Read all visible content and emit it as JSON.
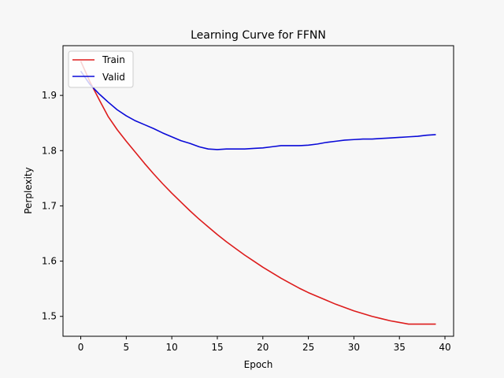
{
  "chart_data": {
    "type": "line",
    "title": "Learning Curve for FFNN",
    "xlabel": "Epoch",
    "ylabel": "Perplexity",
    "xlim": [
      -1.95,
      40.95
    ],
    "ylim": [
      1.464,
      1.99
    ],
    "xticks": [
      0,
      5,
      10,
      15,
      20,
      25,
      30,
      35,
      40
    ],
    "yticks": [
      1.5,
      1.6,
      1.7,
      1.8,
      1.9
    ],
    "ytick_labels": [
      "1.5",
      "1.6",
      "1.7",
      "1.8",
      "1.9"
    ],
    "grid": false,
    "legend": "top-left",
    "x": [
      0,
      1,
      2,
      3,
      4,
      5,
      6,
      7,
      8,
      9,
      10,
      11,
      12,
      13,
      14,
      15,
      16,
      17,
      18,
      19,
      20,
      21,
      22,
      23,
      24,
      25,
      26,
      27,
      28,
      29,
      30,
      31,
      32,
      33,
      34,
      35,
      36,
      37,
      38,
      39
    ],
    "series": [
      {
        "name": "Train",
        "color": "#dd1c1c",
        "values": [
          1.962,
          1.925,
          1.893,
          1.862,
          1.838,
          1.817,
          1.797,
          1.777,
          1.758,
          1.74,
          1.723,
          1.707,
          1.691,
          1.676,
          1.662,
          1.648,
          1.635,
          1.623,
          1.611,
          1.6,
          1.589,
          1.579,
          1.569,
          1.56,
          1.551,
          1.543,
          1.536,
          1.529,
          1.522,
          1.516,
          1.51,
          1.505,
          1.5,
          1.496,
          1.492,
          1.489,
          1.486,
          1.486,
          1.486,
          1.486
        ]
      },
      {
        "name": "Valid",
        "color": "#0a0ad8",
        "values": [
          1.944,
          1.92,
          1.903,
          1.888,
          1.874,
          1.863,
          1.854,
          1.847,
          1.84,
          1.832,
          1.825,
          1.818,
          1.813,
          1.807,
          1.803,
          1.802,
          1.803,
          1.803,
          1.803,
          1.804,
          1.805,
          1.807,
          1.809,
          1.809,
          1.809,
          1.81,
          1.812,
          1.815,
          1.817,
          1.819,
          1.82,
          1.821,
          1.821,
          1.822,
          1.823,
          1.824,
          1.825,
          1.826,
          1.828,
          1.829
        ]
      }
    ]
  }
}
